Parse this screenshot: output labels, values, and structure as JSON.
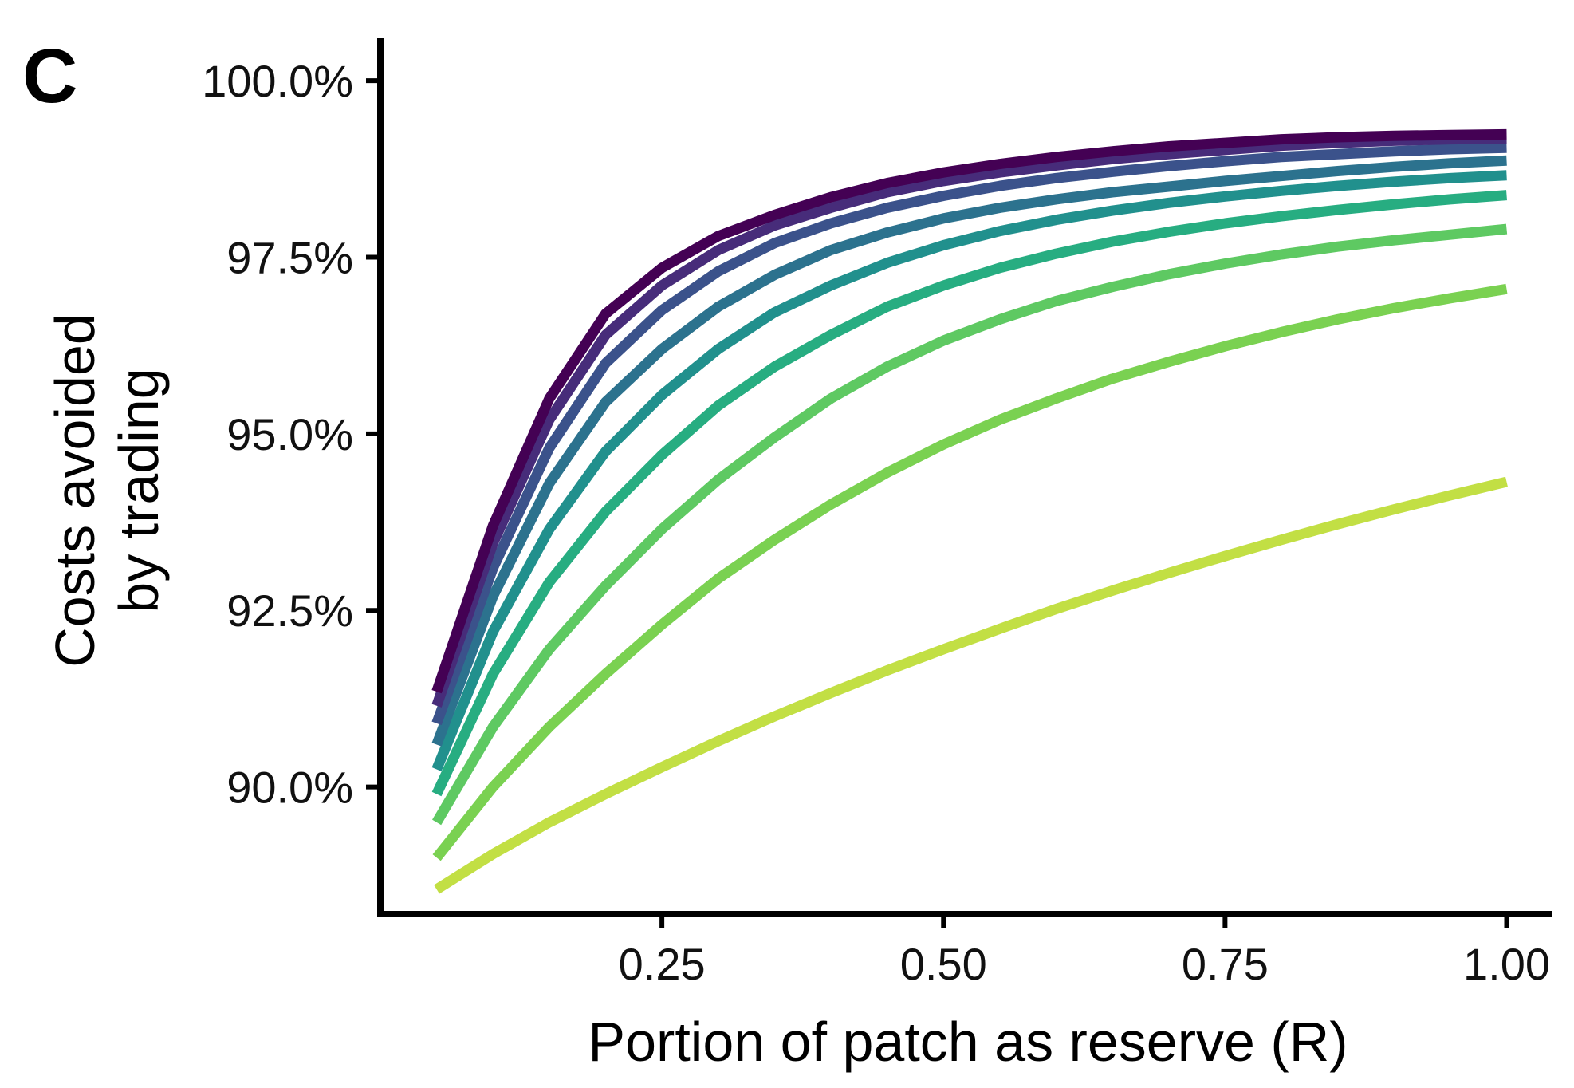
{
  "panel_label": "C",
  "chart_data": {
    "type": "line",
    "title": "",
    "xlabel": "Portion of patch as reserve (R)",
    "ylabel_lines": [
      "Costs avoided",
      "by trading"
    ],
    "xlim": [
      0.0,
      1.04
    ],
    "ylim": [
      88.2,
      100.6
    ],
    "x_ticks": [
      0.25,
      0.5,
      0.75,
      1.0
    ],
    "x_tick_labels": [
      "0.25",
      "0.50",
      "0.75",
      "1.00"
    ],
    "y_ticks": [
      90.0,
      92.5,
      95.0,
      97.5,
      100.0
    ],
    "y_tick_labels": [
      "90.0%",
      "92.5%",
      "95.0%",
      "97.5%",
      "100.0%"
    ],
    "grid": false,
    "legend": "none",
    "x": [
      0.05,
      0.1,
      0.15,
      0.2,
      0.25,
      0.3,
      0.35,
      0.4,
      0.45,
      0.5,
      0.55,
      0.6,
      0.65,
      0.7,
      0.75,
      0.8,
      0.85,
      0.9,
      0.95,
      1.0
    ],
    "series": [
      {
        "color": "#440154",
        "values": [
          91.35,
          93.7,
          95.5,
          96.7,
          97.35,
          97.8,
          98.1,
          98.35,
          98.55,
          98.7,
          98.82,
          98.92,
          99.0,
          99.07,
          99.12,
          99.17,
          99.2,
          99.22,
          99.23,
          99.24
        ]
      },
      {
        "color": "#472c7a",
        "values": [
          91.15,
          93.45,
          95.2,
          96.4,
          97.1,
          97.6,
          97.95,
          98.2,
          98.42,
          98.58,
          98.7,
          98.8,
          98.89,
          98.96,
          99.02,
          99.08,
          99.12,
          99.15,
          99.17,
          99.18
        ]
      },
      {
        "color": "#3b528b",
        "values": [
          90.9,
          93.1,
          94.8,
          96.0,
          96.75,
          97.3,
          97.7,
          97.98,
          98.2,
          98.37,
          98.51,
          98.62,
          98.71,
          98.79,
          98.86,
          98.92,
          98.96,
          99.0,
          99.03,
          99.05
        ]
      },
      {
        "color": "#2c728e",
        "values": [
          90.6,
          92.7,
          94.3,
          95.45,
          96.2,
          96.8,
          97.25,
          97.6,
          97.85,
          98.05,
          98.2,
          98.32,
          98.42,
          98.5,
          98.58,
          98.65,
          98.72,
          98.78,
          98.83,
          98.87
        ]
      },
      {
        "color": "#21908d",
        "values": [
          90.25,
          92.2,
          93.65,
          94.75,
          95.55,
          96.2,
          96.72,
          97.1,
          97.42,
          97.67,
          97.87,
          98.03,
          98.16,
          98.27,
          98.36,
          98.44,
          98.51,
          98.57,
          98.62,
          98.66
        ]
      },
      {
        "color": "#27ad81",
        "values": [
          89.9,
          91.6,
          92.9,
          93.9,
          94.7,
          95.4,
          95.95,
          96.4,
          96.8,
          97.1,
          97.35,
          97.55,
          97.72,
          97.86,
          97.98,
          98.08,
          98.17,
          98.25,
          98.32,
          98.38
        ]
      },
      {
        "color": "#5ec962",
        "values": [
          89.5,
          90.85,
          91.95,
          92.85,
          93.65,
          94.35,
          94.95,
          95.5,
          95.95,
          96.32,
          96.62,
          96.88,
          97.08,
          97.26,
          97.41,
          97.54,
          97.65,
          97.74,
          97.82,
          97.9
        ]
      },
      {
        "color": "#7ad151",
        "values": [
          89.0,
          90.0,
          90.85,
          91.6,
          92.3,
          92.95,
          93.5,
          94.0,
          94.45,
          94.85,
          95.2,
          95.5,
          95.78,
          96.02,
          96.24,
          96.44,
          96.62,
          96.78,
          96.92,
          97.05
        ]
      },
      {
        "color": "#c2df44",
        "values": [
          88.55,
          89.05,
          89.5,
          89.9,
          90.28,
          90.65,
          91.0,
          91.33,
          91.65,
          91.95,
          92.24,
          92.52,
          92.78,
          93.03,
          93.27,
          93.5,
          93.72,
          93.93,
          94.13,
          94.32
        ]
      }
    ]
  }
}
